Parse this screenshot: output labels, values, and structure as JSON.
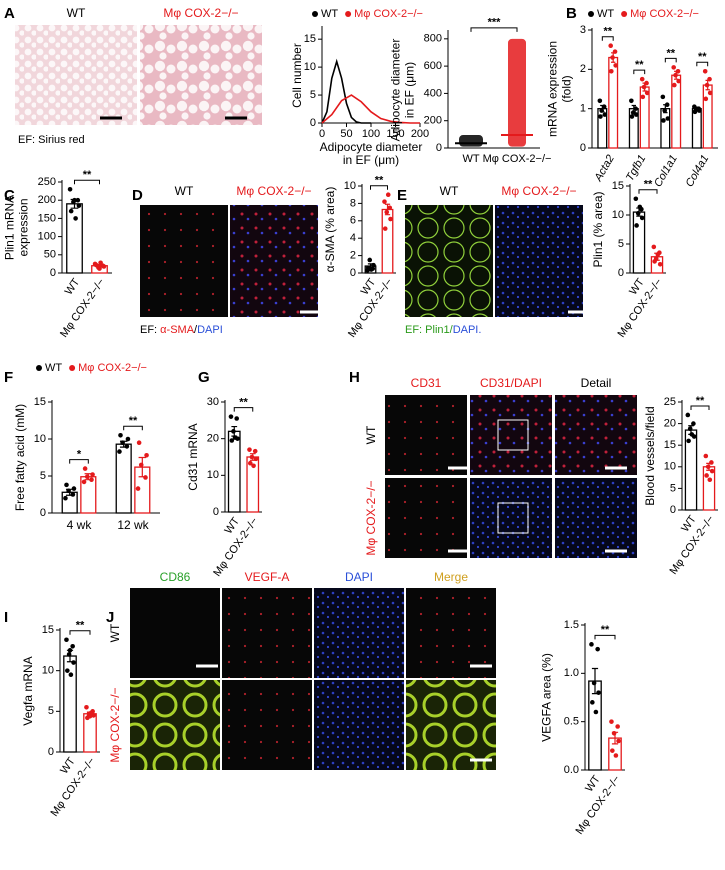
{
  "letters": [
    "A",
    "B",
    "C",
    "D",
    "E",
    "F",
    "G",
    "H",
    "I",
    "J"
  ],
  "images": [
    {
      "columns": [
        "WT",
        "Mφ COX-2−/−"
      ],
      "caption": [
        "EF: Sirius red"
      ]
    },
    {
      "columns": [
        "WT",
        "Mφ COX-2−/−"
      ],
      "caption": [
        "EF: ",
        "α-SMA",
        "/",
        "DAPI"
      ]
    },
    {
      "columns": [
        "WT",
        "Mφ COX-2−/−"
      ],
      "caption": [
        "EF: Plin1/",
        "DAPI."
      ]
    },
    {
      "columns": [
        "CD31",
        "CD31/DAPI",
        "Detail"
      ],
      "rows": [
        "WT",
        "Mφ COX-2−/−"
      ]
    },
    {
      "columns": [
        "CD86",
        "VEGF-A",
        "DAPI",
        "Merge"
      ],
      "rows": [
        "WT",
        "Mφ COX-2−/−"
      ]
    }
  ],
  "chart_data": [
    {
      "type": "curve",
      "xlabel": [
        "Adipocyte diameter",
        "in EF (μm)"
      ],
      "ylabel": [
        "Cell number"
      ],
      "xlim": [
        0,
        200
      ],
      "ylim": [
        0,
        17
      ],
      "xticks": [
        0,
        50,
        100,
        150,
        200
      ],
      "yticks": [
        0,
        5,
        10,
        15
      ],
      "legend": "top",
      "series": [
        {
          "name": "WT",
          "color": "#000000",
          "x": [
            0,
            10,
            20,
            30,
            40,
            50,
            60,
            70,
            80,
            90,
            100
          ],
          "values": [
            0,
            2,
            8,
            11,
            8,
            3.5,
            1,
            0.2,
            0,
            0,
            0
          ]
        },
        {
          "name": "Mφ COX-2−/−",
          "color": "#e41a1c",
          "x": [
            0,
            20,
            40,
            60,
            80,
            100,
            120,
            140,
            160,
            180,
            200
          ],
          "values": [
            0,
            1.5,
            4,
            5,
            3.8,
            2,
            0.8,
            0.3,
            0.1,
            0,
            0
          ]
        }
      ]
    },
    {
      "type": "dot_column",
      "ylabel": [
        "Adipocyte diameter",
        "in EF (μm)"
      ],
      "categories": [
        "WT",
        "Mφ COX-2−/−"
      ],
      "values": [
        35,
        95
      ],
      "ranges": [
        [
          10,
          95
        ],
        [
          10,
          800
        ]
      ],
      "colors": [
        "#000000",
        "#e41a1c"
      ],
      "ylim": [
        0,
        850
      ],
      "yticks": [
        0,
        200,
        400,
        600,
        800
      ],
      "significance": "***"
    },
    {
      "type": "grouped_bar",
      "categories": [
        "Acta2",
        "Tgfb1",
        "Col1a1",
        "Col4a1"
      ],
      "ylabel": [
        "mRNA expression",
        "(fold)"
      ],
      "ylim": [
        0,
        3
      ],
      "yticks": [
        0,
        1,
        2,
        3
      ],
      "legend": "top",
      "significance": [
        "**",
        "**",
        "**",
        "**"
      ],
      "series": [
        {
          "name": "WT",
          "color": "#000000",
          "values": [
            1,
            1,
            1,
            1
          ],
          "errors": [
            0.08,
            0.08,
            0.1,
            0.04
          ],
          "points": [
            [
              1.2,
              1.05,
              0.95,
              0.85,
              0.8
            ],
            [
              1.2,
              1.0,
              0.9,
              0.85,
              0.8
            ],
            [
              1.3,
              1.1,
              0.95,
              0.75,
              0.7
            ],
            [
              1.05,
              1.0,
              0.98,
              0.95,
              0.92
            ]
          ]
        },
        {
          "name": "Mφ COX-2−/−",
          "color": "#e41a1c",
          "values": [
            2.3,
            1.55,
            1.85,
            1.6
          ],
          "errors": [
            0.12,
            0.1,
            0.1,
            0.12
          ],
          "points": [
            [
              2.6,
              2.45,
              2.3,
              2.1,
              1.95
            ],
            [
              1.75,
              1.65,
              1.55,
              1.4,
              1.3
            ],
            [
              2.05,
              1.95,
              1.85,
              1.7,
              1.6
            ],
            [
              1.95,
              1.75,
              1.6,
              1.4,
              1.25
            ]
          ]
        }
      ]
    },
    {
      "type": "bar",
      "ylabel": [
        "Plin1 mRNA",
        "expression"
      ],
      "categories": [
        "WT",
        "Mφ COX-2−/−"
      ],
      "colors": [
        "#000000",
        "#e41a1c"
      ],
      "values": [
        190,
        20
      ],
      "errors": [
        12,
        3
      ],
      "points": [
        [
          230,
          200,
          195,
          185,
          170,
          150,
          200
        ],
        [
          25,
          20,
          15,
          18,
          22,
          28,
          12
        ]
      ],
      "ylim": [
        0,
        250
      ],
      "yticks": [
        0,
        50,
        100,
        150,
        200,
        250
      ],
      "significance": "**"
    },
    {
      "type": "bar",
      "ylabel": [
        "α-SMA (% area)"
      ],
      "categories": [
        "WT",
        "Mφ COX-2−/−"
      ],
      "colors": [
        "#000000",
        "#e41a1c"
      ],
      "values": [
        0.8,
        7.3
      ],
      "errors": [
        0.25,
        0.6
      ],
      "points": [
        [
          0.3,
          0.5,
          1.5,
          0.9,
          0.6,
          0.4
        ],
        [
          8.2,
          7.5,
          7.0,
          6.2,
          5.1,
          9.0
        ]
      ],
      "ylim": [
        0,
        10
      ],
      "yticks": [
        0,
        2,
        4,
        6,
        8,
        10
      ],
      "significance": "**"
    },
    {
      "type": "bar",
      "ylabel": [
        "Plin1 (% area)"
      ],
      "categories": [
        "WT",
        "Mφ COX-2−/−"
      ],
      "colors": [
        "#000000",
        "#e41a1c"
      ],
      "values": [
        10.5,
        2.8
      ],
      "errors": [
        0.7,
        0.6
      ],
      "points": [
        [
          12.8,
          11,
          10.3,
          9.5,
          8.2,
          11.4
        ],
        [
          4.5,
          3.5,
          2.5,
          1.5,
          2,
          3.2
        ]
      ],
      "ylim": [
        0,
        15
      ],
      "yticks": [
        0,
        5,
        10,
        15
      ],
      "significance": "**"
    },
    {
      "type": "grouped_bar",
      "categories": [
        "4 wk",
        "12 wk"
      ],
      "ylabel": [
        "Free fatty acid (mM)"
      ],
      "ylim": [
        0,
        15
      ],
      "yticks": [
        0,
        5,
        10,
        15
      ],
      "legend": "top",
      "significance": [
        "*",
        "**"
      ],
      "series": [
        {
          "name": "WT",
          "color": "#000000",
          "values": [
            2.8,
            9.3
          ],
          "errors": [
            0.4,
            0.4
          ],
          "points": [
            [
              2,
              2.5,
              3,
              3.3,
              3.8
            ],
            [
              8.3,
              9,
              9.5,
              10,
              10.5
            ]
          ]
        },
        {
          "name": "Mφ COX-2−/−",
          "color": "#e41a1c",
          "values": [
            4.9,
            6.2
          ],
          "errors": [
            0.4,
            1.3
          ],
          "points": [
            [
              4.2,
              4.5,
              4.9,
              5.2,
              6
            ],
            [
              3.3,
              4.8,
              6.5,
              7.8,
              9.5
            ]
          ]
        }
      ]
    },
    {
      "type": "bar",
      "ylabel": [
        "Cd31 mRNA"
      ],
      "categories": [
        "WT",
        "Mφ COX-2−/−"
      ],
      "colors": [
        "#000000",
        "#e41a1c"
      ],
      "values": [
        22,
        15
      ],
      "errors": [
        1.3,
        0.9
      ],
      "points": [
        [
          26,
          25.5,
          22,
          20,
          19.5,
          20.3
        ],
        [
          17,
          16.6,
          15,
          14.5,
          13.3,
          12.6
        ]
      ],
      "ylim": [
        0,
        30
      ],
      "yticks": [
        0,
        10,
        20,
        30
      ],
      "significance": "**"
    },
    {
      "type": "bar",
      "ylabel": [
        "Blood vessels/field"
      ],
      "categories": [
        "WT",
        "Mφ COX-2−/−"
      ],
      "colors": [
        "#000000",
        "#e41a1c"
      ],
      "values": [
        18.5,
        10
      ],
      "errors": [
        1,
        0.8
      ],
      "points": [
        [
          22,
          20,
          18.8,
          17,
          16,
          17.5
        ],
        [
          12.5,
          11,
          10,
          9,
          8,
          7
        ]
      ],
      "ylim": [
        0,
        25
      ],
      "yticks": [
        0,
        5,
        10,
        15,
        20,
        25
      ],
      "significance": "**"
    },
    {
      "type": "bar",
      "ylabel": [
        "Vegfa mRNA"
      ],
      "categories": [
        "WT",
        "Mφ COX-2−/−"
      ],
      "colors": [
        "#000000",
        "#e41a1c"
      ],
      "values": [
        11.8,
        4.7
      ],
      "errors": [
        0.7,
        0.2
      ],
      "points": [
        [
          13.8,
          13,
          12,
          11,
          10,
          9.5,
          12.5
        ],
        [
          5.5,
          5,
          4.7,
          4.5,
          4.2,
          4.8,
          4.4
        ]
      ],
      "ylim": [
        0,
        15
      ],
      "yticks": [
        0,
        5,
        10,
        15
      ],
      "significance": "**"
    },
    {
      "type": "bar",
      "ylabel": [
        "VEGFA area (%)"
      ],
      "categories": [
        "WT",
        "Mφ COX-2−/−"
      ],
      "colors": [
        "#000000",
        "#e41a1c"
      ],
      "values": [
        0.92,
        0.33
      ],
      "errors": [
        0.13,
        0.06
      ],
      "points": [
        [
          1.3,
          1.25,
          0.9,
          0.8,
          0.7,
          0.6
        ],
        [
          0.5,
          0.45,
          0.38,
          0.3,
          0.2,
          0.15
        ]
      ],
      "ylim": [
        0,
        1.5
      ],
      "yticks": [
        {
          "value": 0,
          "label": "0.0"
        },
        {
          "value": 0.5,
          "label": "0.5"
        },
        {
          "value": 1,
          "label": "1.0"
        },
        {
          "value": 1.5,
          "label": "1.5"
        }
      ],
      "significance": "**"
    }
  ]
}
